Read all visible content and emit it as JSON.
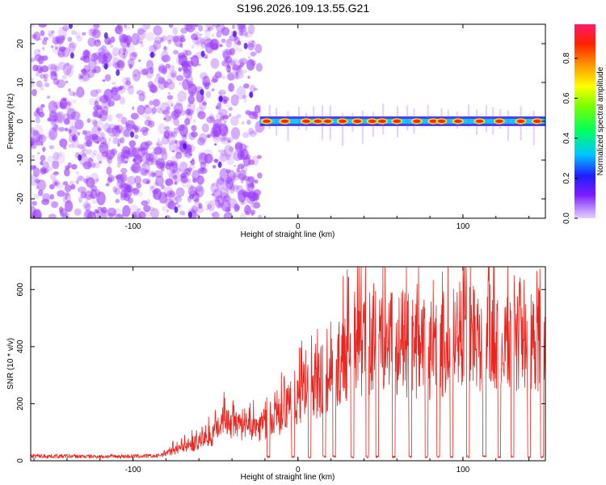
{
  "title": "S196.2026.109.13.55.G21",
  "colors": {
    "axes": "#000000",
    "snr_line": "#e8251f",
    "noise_purple": "#9b3dff"
  },
  "colorbar": {
    "label": "Normalized spectral amplitude",
    "ticks": [
      "0.0",
      "0.2",
      "0.4",
      "0.6",
      "0.8"
    ],
    "tick_values": [
      0.0,
      0.2,
      0.4,
      0.6,
      0.8
    ],
    "range": [
      0.0,
      0.97
    ],
    "colormap": "rainbow (purple to red)"
  },
  "chart_data": [
    {
      "type": "heatmap",
      "xlabel": "Height of straight line (km)",
      "ylabel": "Frequency (Hz)",
      "xlim": [
        -162,
        150
      ],
      "ylim": [
        -25,
        25
      ],
      "xticks": [
        -100,
        0,
        100
      ],
      "yticks": [
        -20,
        -10,
        0,
        10,
        20
      ],
      "grid": false,
      "noise_region_x": [
        -162,
        -23
      ],
      "signal_start_x": -23,
      "signal_frequency_hz": 0,
      "signal_peaks_x": [
        -19,
        -8,
        5,
        12,
        18,
        27,
        36,
        45,
        51,
        60,
        72,
        82,
        87,
        97,
        110,
        122,
        135,
        145
      ]
    },
    {
      "type": "line",
      "xlabel": "Height of straight line (km)",
      "ylabel": "SNR (10 * v/v)",
      "xlim": [
        -162,
        150
      ],
      "ylim": [
        0,
        680
      ],
      "xticks": [
        -100,
        0,
        100
      ],
      "yticks": [
        0,
        200,
        400,
        600
      ],
      "grid": false,
      "series": [
        {
          "envelope_x": [
            -162,
            -120,
            -85,
            -78,
            -70,
            -60,
            -50,
            -45,
            -40,
            -30,
            -20,
            -10,
            0,
            10,
            20,
            30,
            40,
            50,
            60,
            70,
            80,
            90,
            100,
            110,
            120,
            130,
            140,
            150
          ],
          "envelope_y": [
            20,
            18,
            20,
            40,
            60,
            80,
            120,
            200,
            150,
            130,
            160,
            200,
            260,
            320,
            380,
            450,
            500,
            540,
            510,
            480,
            470,
            500,
            560,
            540,
            520,
            530,
            520,
            540
          ],
          "dips_x": [
            -18,
            -3,
            7,
            16,
            22,
            33,
            42,
            48,
            58,
            68,
            78,
            85,
            93,
            103,
            113,
            122,
            130,
            140,
            148
          ],
          "dip_value": 10
        }
      ]
    }
  ]
}
